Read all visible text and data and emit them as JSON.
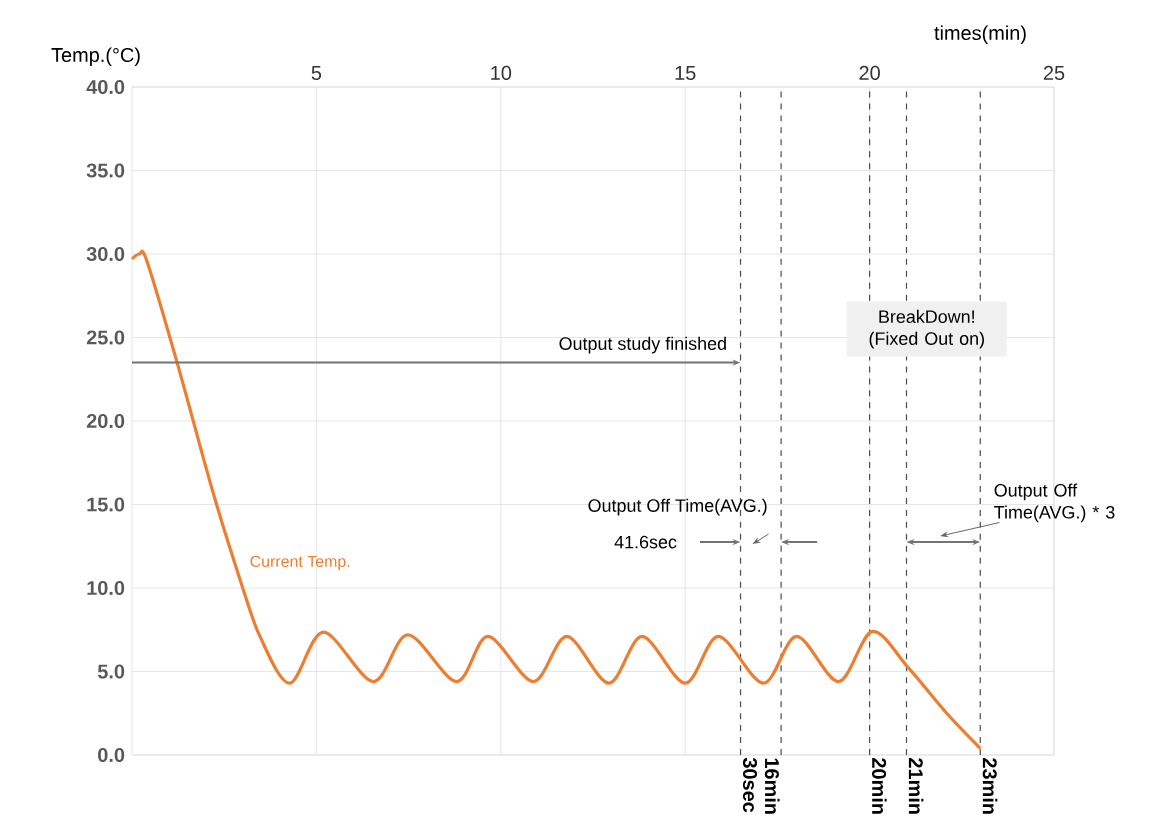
{
  "chart_data": {
    "type": "line",
    "xlabel": "times(min)",
    "ylabel": "Temp.(°C)",
    "xlim": [
      0,
      25
    ],
    "xticks": [
      5,
      10,
      15,
      20,
      25
    ],
    "ylim": [
      0,
      40
    ],
    "yticks": [
      {
        "value": 0,
        "label": "0.0"
      },
      {
        "value": 5,
        "label": "5.0"
      },
      {
        "value": 10,
        "label": "10.0"
      },
      {
        "value": 15,
        "label": "15.0"
      },
      {
        "value": 20,
        "label": "20.0"
      },
      {
        "value": 25,
        "label": "25.0"
      },
      {
        "value": 30,
        "label": "30.0"
      },
      {
        "value": 35,
        "label": "35.0"
      },
      {
        "value": 40,
        "label": "40.0"
      }
    ],
    "grid": true,
    "marker": "none",
    "line_style": "solid",
    "series": [
      {
        "name": "Current Temp.",
        "color": "#ed7d31",
        "x": [
          0,
          0.2,
          0.4,
          1.21,
          2.2,
          2.93,
          3.47,
          4.28,
          5.19,
          6.54,
          7.48,
          8.8,
          9.65,
          10.88,
          11.79,
          12.93,
          13.83,
          15.0,
          15.9,
          17.12,
          18.02,
          19.16,
          20.07,
          21.06,
          22.09,
          23.0
        ],
        "values": [
          29.7,
          30.0,
          29.6,
          23.6,
          15.7,
          10.5,
          7.1,
          4.3,
          7.36,
          4.4,
          7.2,
          4.4,
          7.1,
          4.4,
          7.1,
          4.3,
          7.1,
          4.3,
          7.1,
          4.3,
          7.1,
          4.4,
          7.4,
          5.2,
          2.5,
          0.4
        ]
      }
    ],
    "ref_lines": [
      {
        "axis": "x",
        "value": 16.5,
        "label": "16min 30sec",
        "line_style": "dashed"
      },
      {
        "axis": "x",
        "value": 17.6,
        "line_style": "dashed"
      },
      {
        "axis": "x",
        "value": 20,
        "label": "20min",
        "line_style": "dashed"
      },
      {
        "axis": "x",
        "value": 21,
        "label": "21min",
        "line_style": "dashed"
      },
      {
        "axis": "x",
        "value": 23,
        "label": "23min",
        "line_style": "dashed"
      }
    ],
    "annotations": [
      "Output study finished",
      "BreakDown! (Fixed Out on)",
      "Output Off Time(AVG.)",
      "41.6sec",
      "Output Off Time(AVG.) * 3"
    ]
  }
}
